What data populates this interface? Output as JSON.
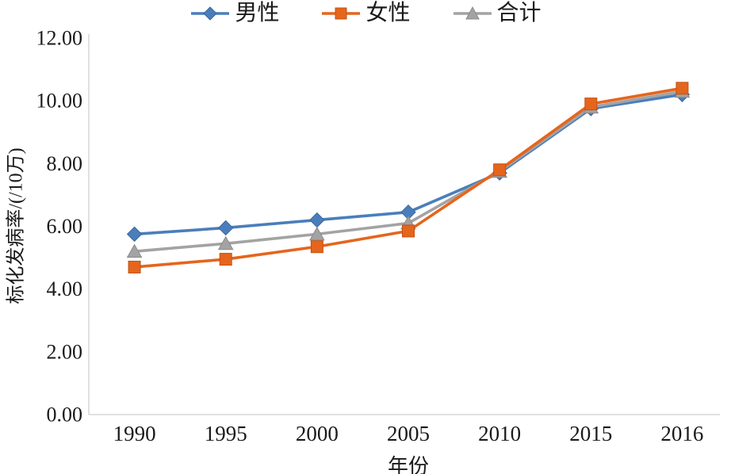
{
  "chart_data": {
    "type": "line",
    "title": "",
    "categories": [
      "1990",
      "1995",
      "2000",
      "2005",
      "2010",
      "2015",
      "2016"
    ],
    "series": [
      {
        "key": "male",
        "name": "男性",
        "marker": "diamond",
        "color": "#4a7ebb",
        "edge": "#3a669c",
        "values": [
          5.75,
          5.95,
          6.2,
          6.45,
          7.7,
          9.75,
          10.2
        ]
      },
      {
        "key": "female",
        "name": "女性",
        "marker": "square",
        "color": "#e5651d",
        "edge": "#c25212",
        "values": [
          4.7,
          4.95,
          5.35,
          5.85,
          7.8,
          9.9,
          10.4
        ]
      },
      {
        "key": "total",
        "name": "合计",
        "marker": "triangle",
        "color": "#a3a3a3",
        "edge": "#8c8c8c",
        "values": [
          5.2,
          5.45,
          5.75,
          6.1,
          7.75,
          9.8,
          10.3
        ]
      }
    ],
    "xlabel": "年份",
    "ylabel": "标化发病率/(/10万)",
    "ylim": [
      0,
      12
    ],
    "ytick_step": 2,
    "yticks": [
      "0.00",
      "2.00",
      "4.00",
      "6.00",
      "8.00",
      "10.00",
      "12.00"
    ],
    "legend_position": "top",
    "grid": false,
    "axis_color": "#d6d6d6",
    "text_color": "#1a1a1a",
    "background": "#ffffff"
  }
}
